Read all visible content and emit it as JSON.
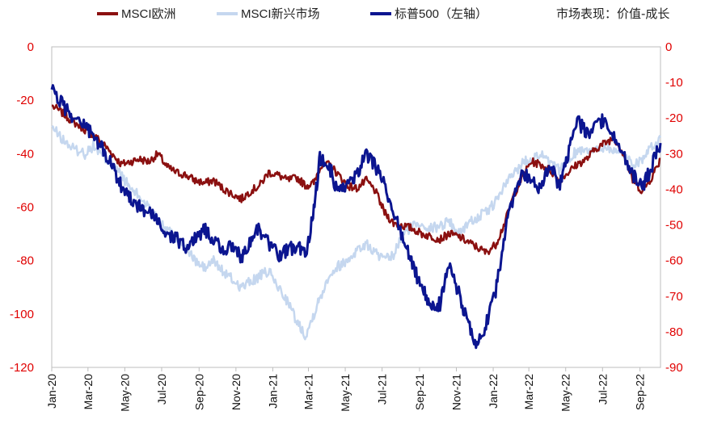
{
  "note": "市场表现：价值-成长",
  "colors": {
    "msci_europe": "#8b1010",
    "msci_em": "#c5d7ef",
    "sp500": "#0b1590",
    "tick_text": "#e00000"
  },
  "chart_data": {
    "type": "line",
    "title": "",
    "xlabel": "",
    "ylabel_left": "",
    "ylabel_right": "",
    "grid": false,
    "legend_position": "top",
    "x_start": "2020-01",
    "x_end": "2022-10",
    "x_tick_labels": [
      "Jan-20",
      "Mar-20",
      "May-20",
      "Jul-20",
      "Sep-20",
      "Nov-20",
      "Jan-21",
      "Mar-21",
      "May-21",
      "Jul-21",
      "Sep-21",
      "Nov-21",
      "Jan-22",
      "Mar-22",
      "May-22",
      "Jul-22",
      "Sep-22"
    ],
    "y_left": {
      "min": -120,
      "max": 0,
      "ticks": [
        "0",
        "-20",
        "-40",
        "-60",
        "-80",
        "-100",
        "-120"
      ]
    },
    "y_right": {
      "min": -90,
      "max": 0,
      "ticks": [
        "0",
        "-10",
        "-20",
        "-30",
        "-40",
        "-50",
        "-60",
        "-70",
        "-80",
        "-90"
      ]
    },
    "series": [
      {
        "name": "MSCI欧洲",
        "axis": "left",
        "color_key": "msci_europe",
        "points": [
          [
            "2020-01-01",
            -22
          ],
          [
            "2020-01-20",
            -25
          ],
          [
            "2020-02-05",
            -28
          ],
          [
            "2020-02-25",
            -31
          ],
          [
            "2020-03-10",
            -33
          ],
          [
            "2020-03-25",
            -36
          ],
          [
            "2020-04-10",
            -40
          ],
          [
            "2020-04-25",
            -44
          ],
          [
            "2020-05-10",
            -43
          ],
          [
            "2020-05-25",
            -42
          ],
          [
            "2020-06-10",
            -43
          ],
          [
            "2020-06-25",
            -40
          ],
          [
            "2020-07-10",
            -45
          ],
          [
            "2020-07-25",
            -47
          ],
          [
            "2020-08-10",
            -48
          ],
          [
            "2020-08-25",
            -50
          ],
          [
            "2020-09-10",
            -51
          ],
          [
            "2020-09-25",
            -50
          ],
          [
            "2020-10-10",
            -53
          ],
          [
            "2020-10-25",
            -55
          ],
          [
            "2020-11-10",
            -57
          ],
          [
            "2020-11-25",
            -54
          ],
          [
            "2020-12-10",
            -52
          ],
          [
            "2020-12-25",
            -47
          ],
          [
            "2021-01-10",
            -48
          ],
          [
            "2021-01-25",
            -50
          ],
          [
            "2021-02-10",
            -49
          ],
          [
            "2021-02-25",
            -52
          ],
          [
            "2021-03-10",
            -51
          ],
          [
            "2021-03-20",
            -45
          ],
          [
            "2021-04-05",
            -44
          ],
          [
            "2021-04-20",
            -48
          ],
          [
            "2021-05-05",
            -52
          ],
          [
            "2021-05-20",
            -53
          ],
          [
            "2021-06-05",
            -50
          ],
          [
            "2021-06-20",
            -54
          ],
          [
            "2021-07-05",
            -62
          ],
          [
            "2021-07-20",
            -66
          ],
          [
            "2021-08-05",
            -67
          ],
          [
            "2021-08-20",
            -68
          ],
          [
            "2021-09-05",
            -70
          ],
          [
            "2021-09-20",
            -71
          ],
          [
            "2021-10-05",
            -72
          ],
          [
            "2021-10-20",
            -70
          ],
          [
            "2021-11-05",
            -71
          ],
          [
            "2021-11-20",
            -73
          ],
          [
            "2021-12-05",
            -75
          ],
          [
            "2021-12-20",
            -77
          ],
          [
            "2022-01-05",
            -74
          ],
          [
            "2022-01-20",
            -66
          ],
          [
            "2022-02-05",
            -55
          ],
          [
            "2022-02-20",
            -48
          ],
          [
            "2022-03-05",
            -43
          ],
          [
            "2022-03-20",
            -44
          ],
          [
            "2022-04-05",
            -46
          ],
          [
            "2022-04-20",
            -50
          ],
          [
            "2022-05-05",
            -47
          ],
          [
            "2022-05-20",
            -44
          ],
          [
            "2022-06-05",
            -42
          ],
          [
            "2022-06-20",
            -38
          ],
          [
            "2022-07-05",
            -36
          ],
          [
            "2022-07-20",
            -34
          ],
          [
            "2022-08-05",
            -40
          ],
          [
            "2022-08-20",
            -50
          ],
          [
            "2022-09-05",
            -54
          ],
          [
            "2022-09-20",
            -49
          ],
          [
            "2022-10-05",
            -42
          ]
        ]
      },
      {
        "name": "MSCI新兴市场",
        "axis": "left",
        "color_key": "msci_em",
        "points": [
          [
            "2020-01-01",
            -30
          ],
          [
            "2020-01-20",
            -35
          ],
          [
            "2020-02-05",
            -38
          ],
          [
            "2020-02-25",
            -40
          ],
          [
            "2020-03-10",
            -37
          ],
          [
            "2020-03-25",
            -41
          ],
          [
            "2020-04-10",
            -44
          ],
          [
            "2020-04-25",
            -48
          ],
          [
            "2020-05-10",
            -53
          ],
          [
            "2020-05-25",
            -56
          ],
          [
            "2020-06-10",
            -60
          ],
          [
            "2020-06-25",
            -64
          ],
          [
            "2020-07-10",
            -68
          ],
          [
            "2020-07-25",
            -72
          ],
          [
            "2020-08-10",
            -75
          ],
          [
            "2020-08-25",
            -80
          ],
          [
            "2020-09-10",
            -83
          ],
          [
            "2020-09-25",
            -80
          ],
          [
            "2020-10-10",
            -84
          ],
          [
            "2020-10-25",
            -87
          ],
          [
            "2020-11-10",
            -90
          ],
          [
            "2020-11-25",
            -88
          ],
          [
            "2020-12-10",
            -86
          ],
          [
            "2020-12-25",
            -84
          ],
          [
            "2021-01-10",
            -90
          ],
          [
            "2021-01-25",
            -95
          ],
          [
            "2021-02-10",
            -103
          ],
          [
            "2021-02-25",
            -108
          ],
          [
            "2021-03-10",
            -100
          ],
          [
            "2021-03-20",
            -94
          ],
          [
            "2021-04-05",
            -85
          ],
          [
            "2021-04-20",
            -82
          ],
          [
            "2021-05-05",
            -80
          ],
          [
            "2021-05-20",
            -76
          ],
          [
            "2021-06-05",
            -74
          ],
          [
            "2021-06-20",
            -77
          ],
          [
            "2021-07-05",
            -80
          ],
          [
            "2021-07-20",
            -78
          ],
          [
            "2021-08-05",
            -70
          ],
          [
            "2021-08-20",
            -67
          ],
          [
            "2021-09-05",
            -66
          ],
          [
            "2021-09-20",
            -68
          ],
          [
            "2021-10-05",
            -67
          ],
          [
            "2021-10-20",
            -65
          ],
          [
            "2021-11-05",
            -70
          ],
          [
            "2021-11-20",
            -66
          ],
          [
            "2021-12-05",
            -64
          ],
          [
            "2021-12-20",
            -62
          ],
          [
            "2022-01-05",
            -58
          ],
          [
            "2022-01-20",
            -52
          ],
          [
            "2022-02-05",
            -47
          ],
          [
            "2022-02-20",
            -43
          ],
          [
            "2022-03-05",
            -42
          ],
          [
            "2022-03-20",
            -40
          ],
          [
            "2022-04-05",
            -44
          ],
          [
            "2022-04-20",
            -46
          ],
          [
            "2022-05-05",
            -42
          ],
          [
            "2022-05-20",
            -39
          ],
          [
            "2022-06-05",
            -38
          ],
          [
            "2022-06-20",
            -39
          ],
          [
            "2022-07-05",
            -37
          ],
          [
            "2022-07-20",
            -39
          ],
          [
            "2022-08-05",
            -40
          ],
          [
            "2022-08-20",
            -44
          ],
          [
            "2022-09-05",
            -42
          ],
          [
            "2022-09-20",
            -38
          ],
          [
            "2022-10-05",
            -34
          ]
        ]
      },
      {
        "name": "标普500（左轴）",
        "axis": "left",
        "color_key": "sp500",
        "points": [
          [
            "2020-01-01",
            -16
          ],
          [
            "2020-01-20",
            -22
          ],
          [
            "2020-02-05",
            -26
          ],
          [
            "2020-02-25",
            -29
          ],
          [
            "2020-03-10",
            -34
          ],
          [
            "2020-03-25",
            -38
          ],
          [
            "2020-04-10",
            -45
          ],
          [
            "2020-04-25",
            -52
          ],
          [
            "2020-05-10",
            -56
          ],
          [
            "2020-05-25",
            -60
          ],
          [
            "2020-06-10",
            -62
          ],
          [
            "2020-06-25",
            -66
          ],
          [
            "2020-07-10",
            -70
          ],
          [
            "2020-07-25",
            -72
          ],
          [
            "2020-08-10",
            -75
          ],
          [
            "2020-08-25",
            -72
          ],
          [
            "2020-09-10",
            -68
          ],
          [
            "2020-09-25",
            -72
          ],
          [
            "2020-10-10",
            -76
          ],
          [
            "2020-10-25",
            -75
          ],
          [
            "2020-11-10",
            -79
          ],
          [
            "2020-11-25",
            -72
          ],
          [
            "2020-12-10",
            -68
          ],
          [
            "2020-12-25",
            -74
          ],
          [
            "2021-01-10",
            -78
          ],
          [
            "2021-01-25",
            -76
          ],
          [
            "2021-02-10",
            -75
          ],
          [
            "2021-02-25",
            -78
          ],
          [
            "2021-03-10",
            -60
          ],
          [
            "2021-03-20",
            -42
          ],
          [
            "2021-04-05",
            -45
          ],
          [
            "2021-04-20",
            -55
          ],
          [
            "2021-05-05",
            -52
          ],
          [
            "2021-05-20",
            -48
          ],
          [
            "2021-06-05",
            -40
          ],
          [
            "2021-06-20",
            -45
          ],
          [
            "2021-07-05",
            -52
          ],
          [
            "2021-07-20",
            -62
          ],
          [
            "2021-08-05",
            -72
          ],
          [
            "2021-08-20",
            -82
          ],
          [
            "2021-09-05",
            -90
          ],
          [
            "2021-09-20",
            -98
          ],
          [
            "2021-10-05",
            -96
          ],
          [
            "2021-10-20",
            -82
          ],
          [
            "2021-11-05",
            -92
          ],
          [
            "2021-11-20",
            -104
          ],
          [
            "2021-12-05",
            -112
          ],
          [
            "2021-12-20",
            -104
          ],
          [
            "2022-01-05",
            -92
          ],
          [
            "2022-01-20",
            -70
          ],
          [
            "2022-02-05",
            -55
          ],
          [
            "2022-02-20",
            -47
          ],
          [
            "2022-03-05",
            -50
          ],
          [
            "2022-03-20",
            -54
          ],
          [
            "2022-04-05",
            -44
          ],
          [
            "2022-04-20",
            -52
          ],
          [
            "2022-05-05",
            -40
          ],
          [
            "2022-05-20",
            -28
          ],
          [
            "2022-06-05",
            -32
          ],
          [
            "2022-06-20",
            -30
          ],
          [
            "2022-07-05",
            -27
          ],
          [
            "2022-07-20",
            -34
          ],
          [
            "2022-08-05",
            -40
          ],
          [
            "2022-08-20",
            -48
          ],
          [
            "2022-09-05",
            -53
          ],
          [
            "2022-09-20",
            -45
          ],
          [
            "2022-10-05",
            -36
          ]
        ]
      }
    ]
  }
}
